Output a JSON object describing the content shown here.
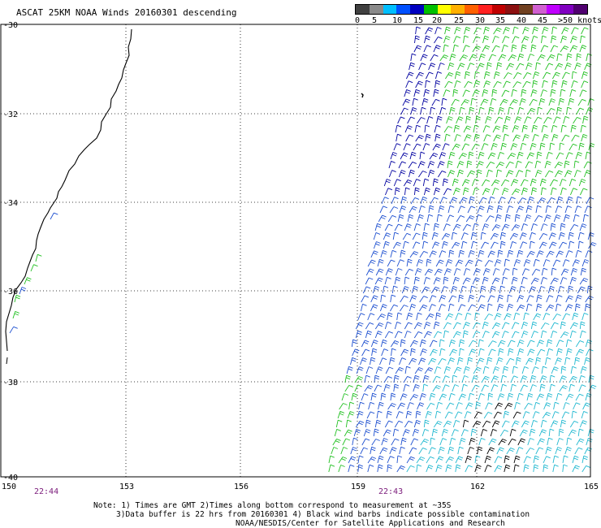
{
  "title": "ASCAT 25KM NOAA Winds 20160301 descending",
  "legend": {
    "labels": [
      "0",
      "5",
      "10",
      "15",
      "20",
      "25",
      "30",
      "35",
      "40",
      "45",
      ">50 knots"
    ],
    "colors": [
      "#404040",
      "#8a8a8a",
      "#00bfff",
      "#0050ff",
      "#0000c0",
      "#00c000",
      "#ffff00",
      "#ffb000",
      "#ff6000",
      "#ff2020",
      "#c00000",
      "#8b1010",
      "#704020",
      "#d060d0",
      "#c000ff",
      "#8000c0",
      "#500070"
    ]
  },
  "map": {
    "lat_labels": [
      "-30",
      "-32",
      "-34",
      "-36",
      "-38",
      "-40"
    ],
    "lon_labels": [
      "150",
      "153",
      "156",
      "159",
      "162",
      "165"
    ],
    "pass_times": [
      "22:44",
      "22:43"
    ]
  },
  "notes": [
    "Note: 1) Times are GMT 2)Times along bottom correspond to measurement at ~35S",
    "3)Data buffer is 22 hrs from 20160301 4) Black wind barbs indicate possible contamination",
    "NOAA/NESDIS/Center for Satellite Applications and Research"
  ],
  "colors": {
    "light_wind": "#20b8d0",
    "moderate_wind": "#1e50d0",
    "strong_wind": "#0000a0",
    "green_wind": "#22c022",
    "contaminated": "#000000"
  }
}
